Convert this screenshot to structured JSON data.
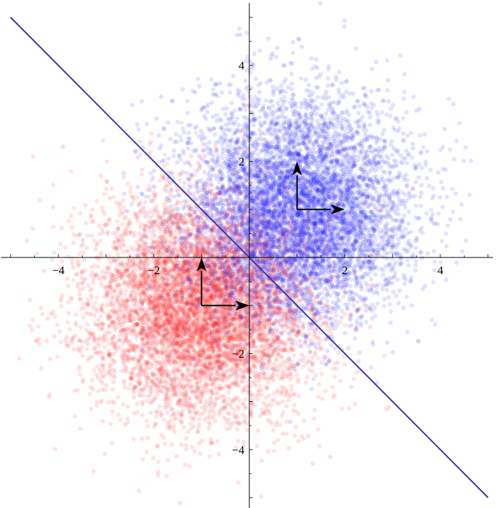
{
  "chart_data": {
    "type": "scatter",
    "title": "",
    "xlabel": "",
    "ylabel": "",
    "xlim": [
      -5.2,
      5.1
    ],
    "ylim": [
      -5.3,
      5.3
    ],
    "grid": false,
    "axes_origin": [
      0,
      0
    ],
    "x_ticks": [
      {
        "value": -4,
        "label": "−4"
      },
      {
        "value": -2,
        "label": "−2"
      },
      {
        "value": 2,
        "label": "2"
      },
      {
        "value": 4,
        "label": "4"
      }
    ],
    "y_ticks": [
      {
        "value": -4,
        "label": "−4"
      },
      {
        "value": -2,
        "label": "−2"
      },
      {
        "value": 2,
        "label": "2"
      },
      {
        "value": 4,
        "label": "4"
      }
    ],
    "series": [
      {
        "color": "#1a1aff",
        "opacity": 0.12,
        "distribution": "gaussian cloud",
        "center": [
          1,
          1
        ],
        "std": [
          1.15,
          1.15
        ],
        "count": 7000
      },
      {
        "color": "#ff1a1a",
        "opacity": 0.12,
        "distribution": "gaussian cloud",
        "center": [
          -1,
          -1
        ],
        "std": [
          1.15,
          1.15
        ],
        "count": 7000
      }
    ],
    "decision_boundary": {
      "color": "#3535a8",
      "from": [
        -5,
        5
      ],
      "to": [
        5,
        -5
      ]
    },
    "arrows": [
      {
        "color": "#000000",
        "from": [
          1,
          1
        ],
        "to": [
          2,
          1
        ]
      },
      {
        "color": "#000000",
        "from": [
          1,
          1
        ],
        "to": [
          1,
          2
        ]
      },
      {
        "color": "#000000",
        "from": [
          -1,
          -1
        ],
        "to": [
          0,
          -1
        ]
      },
      {
        "color": "#000000",
        "from": [
          -1,
          -1
        ],
        "to": [
          -1,
          0
        ]
      }
    ]
  }
}
